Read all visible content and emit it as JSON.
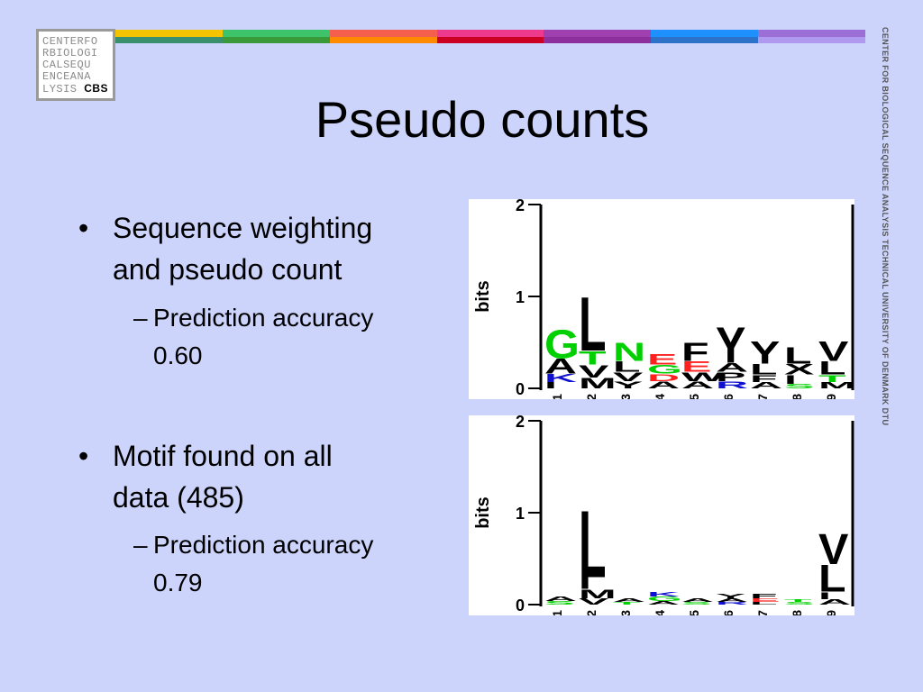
{
  "logo": {
    "lines": [
      "CENTERFO",
      "RBIOLOGI",
      "CALSEQU",
      "ENCEANA",
      "LYSIS"
    ],
    "cbs": "CBS"
  },
  "side_text": "CENTER FOR BIOLOGICAL SEQUENCE ANALYSIS TECHNICAL UNIVERSITY OF DENMARK DTU",
  "title": "Pseudo counts",
  "bullet1": {
    "text_line1": "Sequence weighting",
    "text_line2": "and pseudo count",
    "sub_line1": "Prediction accuracy",
    "sub_line2": "0.60"
  },
  "bullet2": {
    "text_line1": "Motif found on all",
    "text_line2": "data (485)",
    "sub_line1": "Prediction accuracy",
    "sub_line2": "0.79"
  },
  "logo_chart1": {
    "ylabel": "bits",
    "yticks": [
      "2",
      "1",
      "0"
    ],
    "positions": [
      "1",
      "2",
      "3",
      "4",
      "5",
      "6",
      "7",
      "8",
      "9"
    ],
    "columns": [
      [
        [
          "G",
          "#00d000",
          0.32
        ],
        [
          "A",
          "#000000",
          0.17
        ],
        [
          "K",
          "#1010d0",
          0.09
        ],
        [
          "I",
          "#000000",
          0.07
        ]
      ],
      [
        [
          "L",
          "#000000",
          0.6
        ],
        [
          "T",
          "#00d000",
          0.15
        ],
        [
          "V",
          "#000000",
          0.14
        ],
        [
          "M",
          "#000000",
          0.12
        ]
      ],
      [
        [
          "N",
          "#00d000",
          0.2
        ],
        [
          "L",
          "#000000",
          0.12
        ],
        [
          "V",
          "#000000",
          0.1
        ],
        [
          "Y",
          "#000000",
          0.08
        ]
      ],
      [
        [
          "E",
          "#ff2020",
          0.12
        ],
        [
          "G",
          "#00d000",
          0.1
        ],
        [
          "D",
          "#ff2020",
          0.08
        ],
        [
          "A",
          "#000000",
          0.08
        ]
      ],
      [
        [
          "F",
          "#000000",
          0.2
        ],
        [
          "E",
          "#ff2020",
          0.12
        ],
        [
          "W",
          "#000000",
          0.1
        ],
        [
          "A",
          "#000000",
          0.08
        ]
      ],
      [
        [
          "Y",
          "#000000",
          0.4
        ],
        [
          "A",
          "#000000",
          0.1
        ],
        [
          "P",
          "#000000",
          0.1
        ],
        [
          "R",
          "#1010d0",
          0.08
        ]
      ],
      [
        [
          "Y",
          "#000000",
          0.25
        ],
        [
          "L",
          "#000000",
          0.12
        ],
        [
          "F",
          "#000000",
          0.08
        ],
        [
          "A",
          "#000000",
          0.07
        ]
      ],
      [
        [
          "L",
          "#000000",
          0.18
        ],
        [
          "X",
          "#000000",
          0.12
        ],
        [
          "I",
          "#000000",
          0.1
        ],
        [
          "S",
          "#00d000",
          0.05
        ]
      ],
      [
        [
          "V",
          "#000000",
          0.22
        ],
        [
          "L",
          "#000000",
          0.15
        ],
        [
          "T",
          "#00d000",
          0.08
        ],
        [
          "M",
          "#000000",
          0.07
        ]
      ]
    ]
  },
  "logo_chart2": {
    "ylabel": "bits",
    "yticks": [
      "2",
      "1",
      "0"
    ],
    "positions": [
      "1",
      "2",
      "3",
      "4",
      "5",
      "6",
      "7",
      "8",
      "9"
    ],
    "columns": [
      [
        [
          "A",
          "#000000",
          0.05
        ],
        [
          "S",
          "#00d000",
          0.04
        ]
      ],
      [
        [
          "L",
          "#000000",
          0.75
        ],
        [
          "I",
          "#000000",
          0.13
        ],
        [
          "M",
          "#000000",
          0.1
        ],
        [
          "V",
          "#000000",
          0.07
        ]
      ],
      [
        [
          "A",
          "#000000",
          0.04
        ],
        [
          "T",
          "#00d000",
          0.03
        ]
      ],
      [
        [
          "K",
          "#1010d0",
          0.05
        ],
        [
          "G",
          "#00d000",
          0.05
        ],
        [
          "A",
          "#000000",
          0.04
        ]
      ],
      [
        [
          "A",
          "#000000",
          0.04
        ],
        [
          "S",
          "#00d000",
          0.03
        ]
      ],
      [
        [
          "Y",
          "#000000",
          0.05
        ],
        [
          "A",
          "#000000",
          0.04
        ],
        [
          "R",
          "#1010d0",
          0.03
        ]
      ],
      [
        [
          "F",
          "#000000",
          0.05
        ],
        [
          "E",
          "#ff2020",
          0.04
        ],
        [
          "L",
          "#000000",
          0.03
        ]
      ],
      [
        [
          "T",
          "#00d000",
          0.03
        ],
        [
          "S",
          "#00d000",
          0.03
        ]
      ],
      [
        [
          "V",
          "#000000",
          0.34
        ],
        [
          "L",
          "#000000",
          0.3
        ],
        [
          "I",
          "#000000",
          0.08
        ],
        [
          "A",
          "#000000",
          0.06
        ]
      ]
    ]
  },
  "colors": {
    "bar_top": [
      "#f5c400",
      "#3dc46a",
      "#f55f4d",
      "#ee3a8c",
      "#a040b0",
      "#1e90ff",
      "#9b6fd6"
    ],
    "bar_bottom": [
      "#3a8f6c",
      "#3a9a3a",
      "#ff8a00",
      "#cc0022",
      "#8e2f9e",
      "#2b72c8",
      "#b09af0"
    ]
  }
}
